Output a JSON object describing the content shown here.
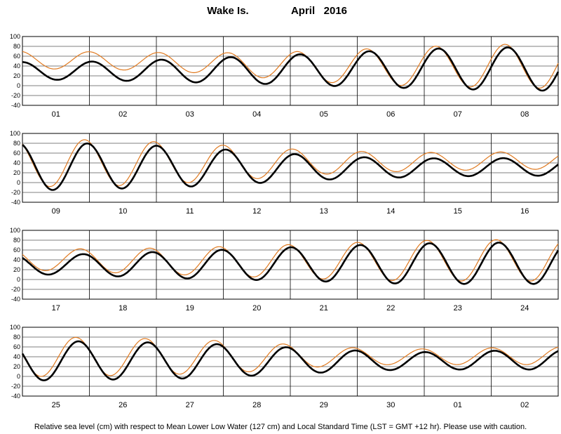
{
  "chart_data": {
    "type": "line",
    "station": "Wake Is.",
    "period": "April   2016",
    "footnote": "Relative sea level (cm) with respect to Mean Lower Low Water (127 cm) and Local Standard Time (LST = GMT +12 hr). Please use with caution.",
    "ylim": [
      -40,
      100
    ],
    "yticks": [
      "100",
      "80",
      "60",
      "40",
      "20",
      "0",
      "-20",
      "-40"
    ],
    "grid": true,
    "series_colors": {
      "observed": "#e07a20",
      "predicted": "#000000"
    },
    "panels": [
      {
        "days": [
          "01",
          "02",
          "03",
          "04",
          "05",
          "06",
          "07",
          "08"
        ],
        "predicted": {
          "mean": [
            30,
            30,
            31,
            32,
            33,
            34,
            35,
            34
          ],
          "amp": [
            18,
            20,
            24,
            28,
            33,
            38,
            42,
            44
          ]
        },
        "observed": {
          "mean": [
            52,
            50,
            47,
            42,
            39,
            39,
            40,
            40
          ],
          "amp": [
            18,
            18,
            20,
            25,
            32,
            38,
            42,
            45
          ]
        }
      },
      {
        "days": [
          "09",
          "10",
          "11",
          "12",
          "13",
          "14",
          "15",
          "16"
        ],
        "predicted": {
          "mean": [
            33,
            33,
            32,
            31,
            30,
            30,
            31,
            32
          ],
          "amp": [
            48,
            45,
            40,
            32,
            24,
            20,
            18,
            18
          ]
        },
        "observed": {
          "mean": [
            40,
            40,
            40,
            40,
            41,
            42,
            43,
            45
          ],
          "amp": [
            48,
            46,
            40,
            32,
            24,
            20,
            18,
            18
          ]
        }
      },
      {
        "days": [
          "17",
          "18",
          "19",
          "20",
          "21",
          "22",
          "23",
          "24"
        ],
        "predicted": {
          "mean": [
            30,
            30,
            30,
            31,
            32,
            32,
            33,
            33
          ],
          "amp": [
            20,
            24,
            28,
            32,
            36,
            40,
            42,
            42
          ]
        },
        "observed": {
          "mean": [
            40,
            38,
            37,
            37,
            37,
            38,
            39,
            39
          ],
          "amp": [
            22,
            25,
            28,
            32,
            36,
            40,
            42,
            42
          ]
        }
      },
      {
        "days": [
          "25",
          "26",
          "27",
          "28",
          "29",
          "30",
          "01",
          "02"
        ],
        "predicted": {
          "mean": [
            32,
            32,
            32,
            32,
            32,
            31,
            32,
            34
          ],
          "amp": [
            40,
            38,
            36,
            30,
            24,
            18,
            18,
            20
          ]
        },
        "observed": {
          "mean": [
            40,
            40,
            40,
            40,
            40,
            40,
            40,
            42
          ],
          "amp": [
            40,
            38,
            35,
            30,
            20,
            16,
            16,
            18
          ]
        }
      }
    ]
  }
}
